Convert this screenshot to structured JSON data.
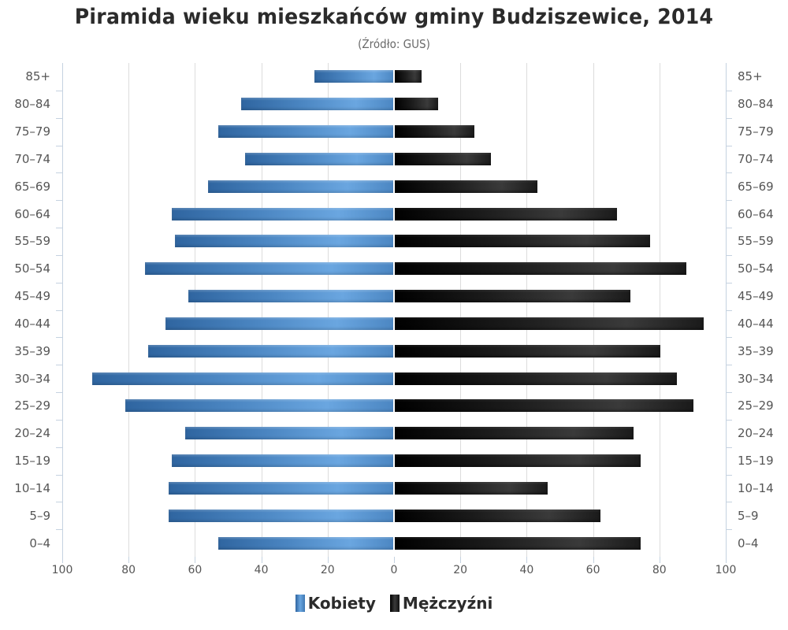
{
  "chart_data": {
    "type": "bar",
    "orientation": "horizontal",
    "subtype": "population-pyramid",
    "title": "Piramida wieku mieszkańców gminy Budziszewice, 2014",
    "subtitle": "(Źródło: GUS)",
    "xlabel": "",
    "ylabel": "",
    "xlim": [
      -100,
      100
    ],
    "x_ticks": [
      "100",
      "80",
      "60",
      "40",
      "20",
      "0",
      "20",
      "40",
      "60",
      "80",
      "100"
    ],
    "grid": true,
    "legend_position": "bottom",
    "categories": [
      "85+",
      "80-84",
      "75-79",
      "70-74",
      "65-69",
      "60-64",
      "55-59",
      "50-54",
      "45-49",
      "40-44",
      "35-39",
      "30-34",
      "25-29",
      "20-24",
      "15-19",
      "10-14",
      "5-9",
      "0-4"
    ],
    "series": [
      {
        "name": "Kobiety",
        "side": "left",
        "color": "#4b86c2",
        "values": [
          24,
          46,
          53,
          45,
          56,
          67,
          66,
          75,
          62,
          69,
          74,
          91,
          81,
          63,
          67,
          68,
          68,
          53
        ]
      },
      {
        "name": "Mężczyźni",
        "side": "right",
        "color": "#1c1c1c",
        "values": [
          8,
          13,
          24,
          29,
          43,
          67,
          77,
          88,
          71,
          93,
          80,
          85,
          90,
          72,
          74,
          46,
          62,
          74
        ]
      }
    ]
  },
  "legend": {
    "items": [
      {
        "label": "Kobiety",
        "color": "#4b86c2"
      },
      {
        "label": "Mężczyźni",
        "color": "#1c1c1c"
      }
    ]
  }
}
